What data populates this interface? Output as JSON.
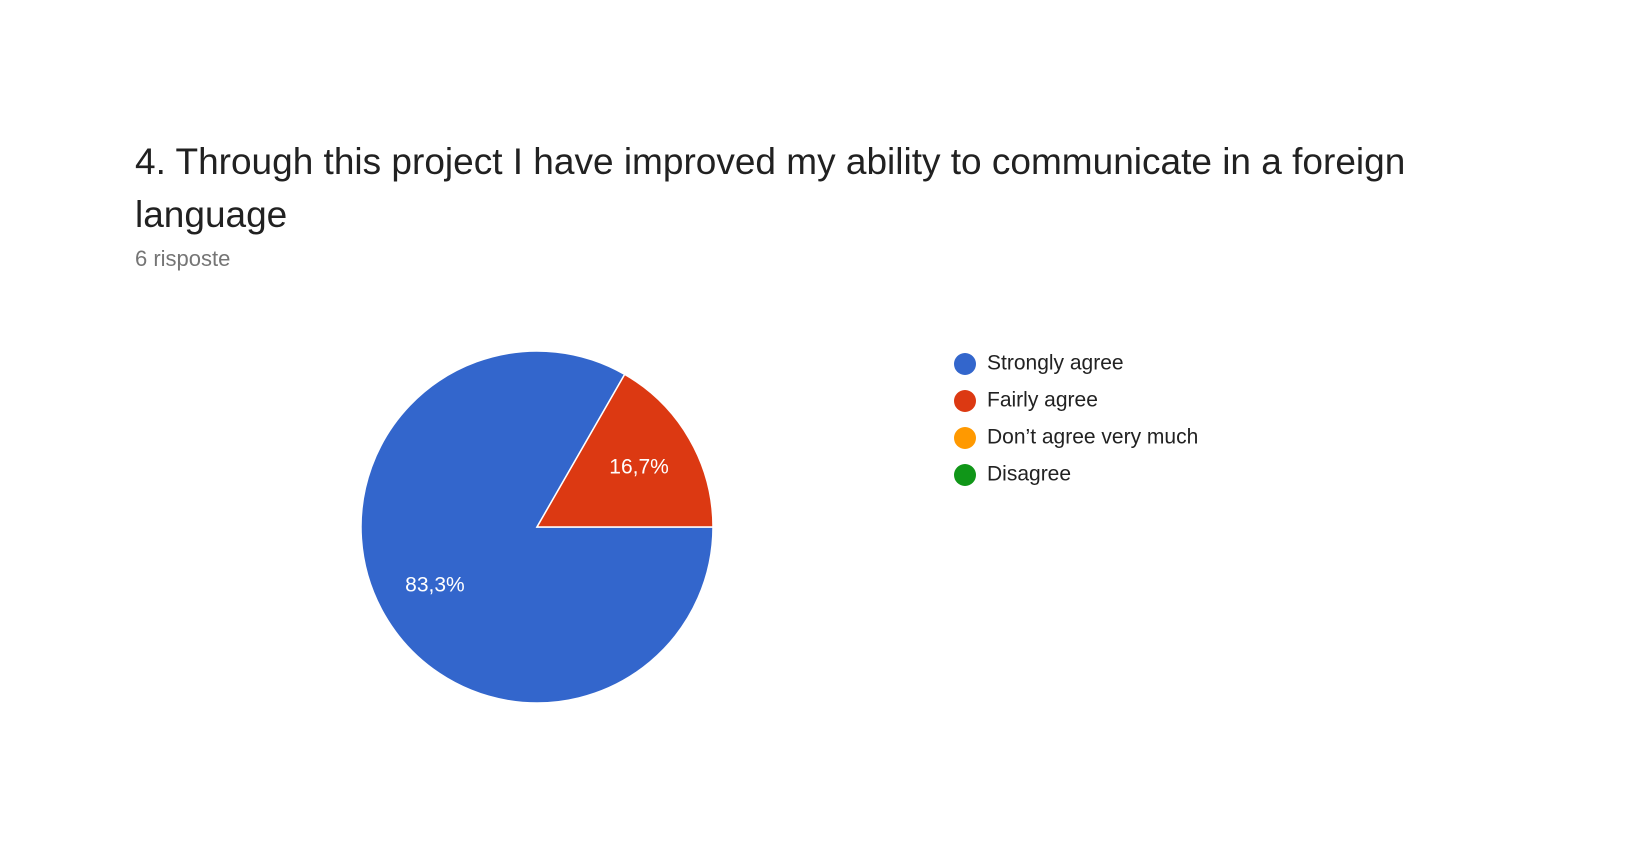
{
  "chart_data": {
    "type": "pie",
    "title": "4. Through this project I have improved my ability to communicate in a foreign language",
    "subtitle": "6 risposte",
    "categories": [
      "Strongly agree",
      "Fairly agree",
      "Don’t agree very much",
      "Disagree"
    ],
    "values": [
      83.3,
      16.7,
      0,
      0
    ],
    "value_labels": [
      "83,3%",
      "16,7%",
      null,
      null
    ],
    "colors": [
      "#3366cc",
      "#dc3912",
      "#ff9900",
      "#109618"
    ],
    "legend": "right"
  }
}
